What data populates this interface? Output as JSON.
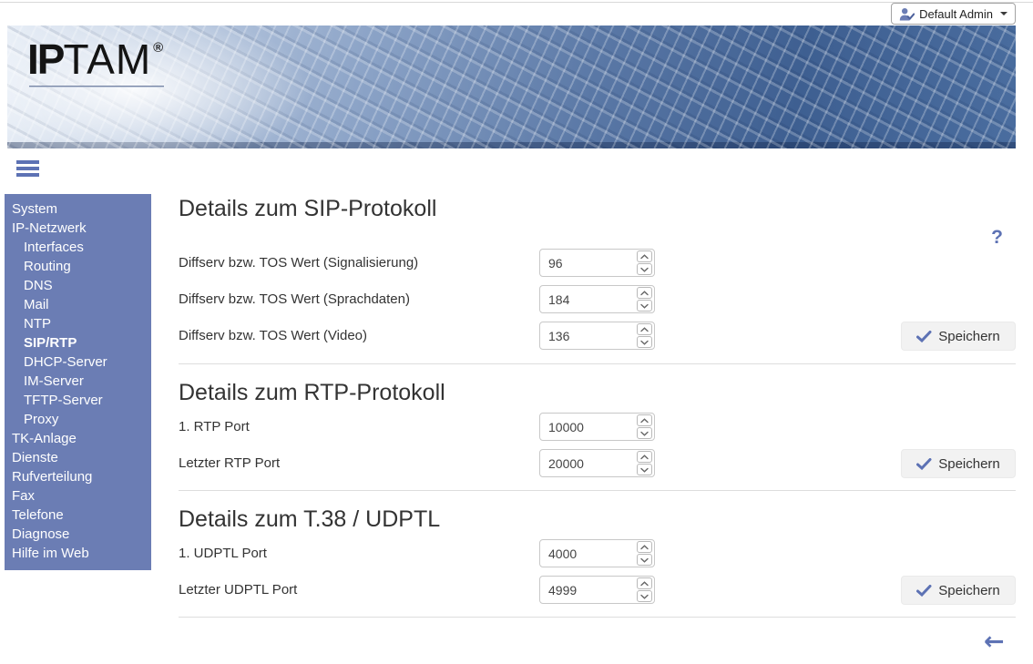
{
  "topbar": {
    "account_label": "Default Admin",
    "icons": {
      "user": "user-check-icon",
      "caret": "caret-down-icon"
    }
  },
  "logo": {
    "brand_bold": "IP",
    "brand_light": "TAM",
    "registered_mark": "®"
  },
  "menu": {
    "icon": "hamburger-icon"
  },
  "sidebar": {
    "items": [
      {
        "label": "System",
        "indent": false,
        "active": false
      },
      {
        "label": "IP-Netzwerk",
        "indent": false,
        "active": false
      },
      {
        "label": "Interfaces",
        "indent": true,
        "active": false
      },
      {
        "label": "Routing",
        "indent": true,
        "active": false
      },
      {
        "label": "DNS",
        "indent": true,
        "active": false
      },
      {
        "label": "Mail",
        "indent": true,
        "active": false
      },
      {
        "label": "NTP",
        "indent": true,
        "active": false
      },
      {
        "label": "SIP/RTP",
        "indent": true,
        "active": true
      },
      {
        "label": "DHCP-Server",
        "indent": true,
        "active": false
      },
      {
        "label": "IM-Server",
        "indent": true,
        "active": false
      },
      {
        "label": "TFTP-Server",
        "indent": true,
        "active": false
      },
      {
        "label": "Proxy",
        "indent": true,
        "active": false
      },
      {
        "label": "TK-Anlage",
        "indent": false,
        "active": false
      },
      {
        "label": "Dienste",
        "indent": false,
        "active": false
      },
      {
        "label": "Rufverteilung",
        "indent": false,
        "active": false
      },
      {
        "label": "Fax",
        "indent": false,
        "active": false
      },
      {
        "label": "Telefone",
        "indent": false,
        "active": false
      },
      {
        "label": "Diagnose",
        "indent": false,
        "active": false
      },
      {
        "label": "Hilfe im Web",
        "indent": false,
        "active": false
      }
    ]
  },
  "help": {
    "symbol": "?"
  },
  "back": {
    "symbol": "←"
  },
  "sections": [
    {
      "title": "Details zum SIP-Protokoll",
      "rows": [
        {
          "label": "Diffserv bzw. TOS Wert (Signalisierung)",
          "value": "96"
        },
        {
          "label": "Diffserv bzw. TOS Wert (Sprachdaten)",
          "value": "184"
        },
        {
          "label": "Diffserv bzw. TOS Wert (Video)",
          "value": "136"
        }
      ],
      "save_label": "Speichern"
    },
    {
      "title": "Details zum RTP-Protokoll",
      "rows": [
        {
          "label": "1. RTP Port",
          "value": "10000"
        },
        {
          "label": "Letzter RTP Port",
          "value": "20000"
        }
      ],
      "save_label": "Speichern"
    },
    {
      "title": "Details zum T.38 / UDPTL",
      "rows": [
        {
          "label": "1. UDPTL Port",
          "value": "4000"
        },
        {
          "label": "Letzter UDPTL Port",
          "value": "4999"
        }
      ],
      "save_label": "Speichern"
    }
  ],
  "colors": {
    "accent": "#5d72b4",
    "sidebar_bg": "#6b7db4",
    "heading": "#333333",
    "divider": "#dddddd",
    "save_button_bg": "#f2f2f2"
  }
}
